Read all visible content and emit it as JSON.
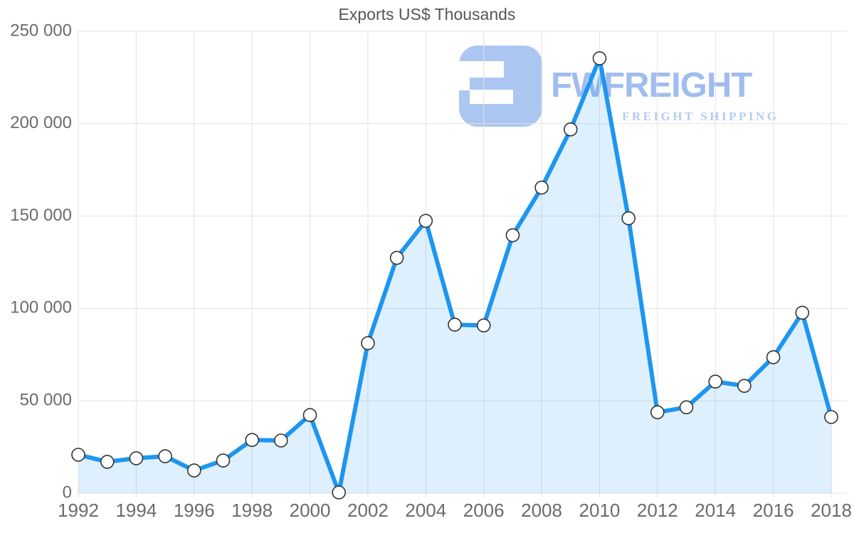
{
  "title": "Exports US$ Thousands",
  "watermark": {
    "brand": "FWFREIGHT",
    "tagline": "FREIGHT SHIPPING"
  },
  "colors": {
    "line": "#1d96f0",
    "area_fill": "rgba(33,150,243,0.15)",
    "grid": "#e3e3e3",
    "axis_text": "#6b6b6b",
    "title_text": "#555555",
    "marker_fill": "#ffffff",
    "marker_stroke": "#333333",
    "logo_icon": "#abc6f1",
    "logo_text": "rgba(150,181,238,0.9)",
    "logo_tagline": "#b4ccf2"
  },
  "chart_data": {
    "type": "area",
    "title": "Exports US$ Thousands",
    "x": [
      1992,
      1993,
      1994,
      1995,
      1996,
      1997,
      1998,
      1999,
      2000,
      2001,
      2002,
      2003,
      2004,
      2005,
      2006,
      2007,
      2008,
      2009,
      2010,
      2011,
      2012,
      2013,
      2014,
      2015,
      2016,
      2017,
      2018
    ],
    "values": [
      20800,
      17000,
      18900,
      20000,
      12300,
      17700,
      28800,
      28500,
      42300,
      400,
      81200,
      127400,
      147400,
      91200,
      90800,
      139600,
      165400,
      196900,
      235400,
      148800,
      43800,
      46500,
      60400,
      58100,
      73600,
      97700,
      41200
    ],
    "series_name": "Exports US$ Thousands",
    "xlabel": "",
    "ylabel": "",
    "ylim": [
      0,
      250000
    ],
    "ytick_step": 50000,
    "ytick_labels": [
      "0",
      "50 000",
      "100 000",
      "150 000",
      "200 000",
      "250 000"
    ],
    "xtick_years": [
      1992,
      1994,
      1996,
      1998,
      2000,
      2002,
      2004,
      2006,
      2008,
      2010,
      2012,
      2014,
      2016,
      2018
    ],
    "grid": true,
    "legend": false,
    "marker": "circle"
  }
}
